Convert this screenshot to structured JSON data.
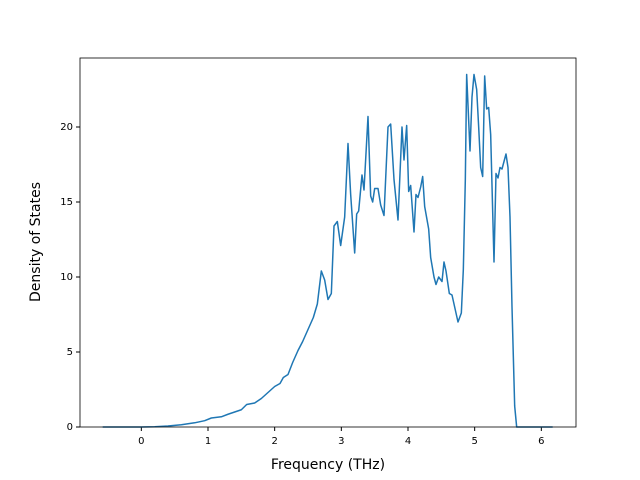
{
  "chart_data": {
    "type": "line",
    "xlabel": "Frequency (THz)",
    "ylabel": "Density of States",
    "xlim": [
      -0.92,
      6.52
    ],
    "ylim": [
      0,
      24.6
    ],
    "xticks": [
      0,
      1,
      2,
      3,
      4,
      5,
      6
    ],
    "yticks": [
      0,
      5,
      10,
      15,
      20
    ],
    "x": [
      -0.58,
      0,
      0.2,
      0.4,
      0.6,
      0.8,
      0.95,
      1.05,
      1.2,
      1.3,
      1.4,
      1.5,
      1.58,
      1.7,
      1.8,
      1.9,
      2.0,
      2.08,
      2.13,
      2.2,
      2.27,
      2.35,
      2.42,
      2.5,
      2.58,
      2.64,
      2.7,
      2.75,
      2.8,
      2.85,
      2.89,
      2.94,
      2.99,
      3.05,
      3.1,
      3.14,
      3.2,
      3.23,
      3.26,
      3.31,
      3.34,
      3.4,
      3.44,
      3.47,
      3.5,
      3.55,
      3.59,
      3.64,
      3.7,
      3.74,
      3.79,
      3.85,
      3.91,
      3.94,
      3.98,
      4.01,
      4.04,
      4.09,
      4.12,
      4.15,
      4.19,
      4.22,
      4.25,
      4.31,
      4.34,
      4.39,
      4.42,
      4.46,
      4.51,
      4.54,
      4.57,
      4.62,
      4.66,
      4.71,
      4.75,
      4.8,
      4.83,
      4.86,
      4.88,
      4.93,
      4.96,
      4.99,
      5.03,
      5.06,
      5.09,
      5.12,
      5.15,
      5.18,
      5.21,
      5.24,
      5.29,
      5.32,
      5.35,
      5.38,
      5.41,
      5.47,
      5.5,
      5.53,
      5.56,
      5.6,
      5.63,
      6.17
    ],
    "series": [
      {
        "name": "DOS",
        "color": "#1f77b4",
        "values": [
          0,
          0,
          0.02,
          0.07,
          0.15,
          0.28,
          0.42,
          0.6,
          0.68,
          0.85,
          1.0,
          1.15,
          1.5,
          1.6,
          1.9,
          2.3,
          2.7,
          2.9,
          3.3,
          3.5,
          4.3,
          5.1,
          5.7,
          6.5,
          7.3,
          8.2,
          10.4,
          9.8,
          8.5,
          8.9,
          13.4,
          13.7,
          12.1,
          14.0,
          18.9,
          15.5,
          11.6,
          14.2,
          14.4,
          16.8,
          15.8,
          20.7,
          15.4,
          15.0,
          15.9,
          15.9,
          14.8,
          14.1,
          20.0,
          20.2,
          16.5,
          13.8,
          20.0,
          17.8,
          20.1,
          15.7,
          16.1,
          13.0,
          15.5,
          15.3,
          16.0,
          16.7,
          14.7,
          13.2,
          11.3,
          10.0,
          9.5,
          10.0,
          9.7,
          11.0,
          10.4,
          8.9,
          8.8,
          7.8,
          7.0,
          7.6,
          10.5,
          16.5,
          23.5,
          18.4,
          22.0,
          23.5,
          22.5,
          20.0,
          17.3,
          16.7,
          23.4,
          21.2,
          21.3,
          19.5,
          11.0,
          16.9,
          16.6,
          17.3,
          17.2,
          18.2,
          17.3,
          14.0,
          8.0,
          1.4,
          0,
          0
        ]
      }
    ]
  }
}
